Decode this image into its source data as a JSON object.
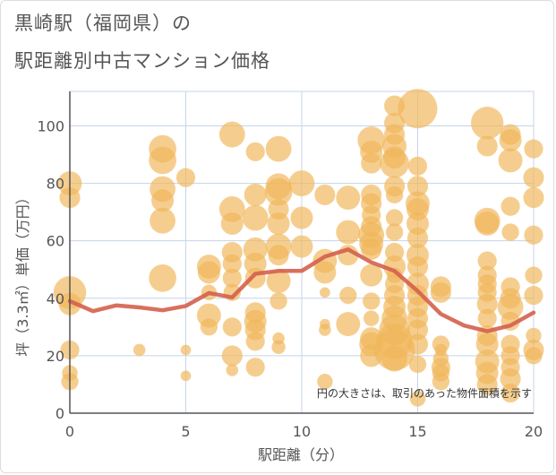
{
  "title_line1": "黒崎駅（福岡県）の",
  "title_line2": "駅距離別中古マンション価格",
  "colors": {
    "bubble": "#f0b75a",
    "line": "#d4604c",
    "grid": "#c5d5e8",
    "axis": "#555555"
  },
  "chart_data": {
    "type": "scatter",
    "title": "黒崎駅（福岡県）の駅距離別中古マンション価格",
    "xlabel": "駅距離（分）",
    "ylabel": "坪（3.3㎡）単価（万円）",
    "xlim": [
      0,
      20
    ],
    "ylim": [
      0,
      112
    ],
    "x_ticks": [
      "0",
      "5",
      "10",
      "15",
      "20"
    ],
    "y_ticks": [
      "0",
      "20",
      "40",
      "60",
      "80",
      "100"
    ],
    "x_tick_values": [
      0,
      5,
      10,
      15,
      20
    ],
    "y_tick_values": [
      0,
      20,
      40,
      60,
      80,
      100
    ],
    "grid": true,
    "annotation": "円の大きさは、取引のあった物件面積を示す",
    "bubbles": [
      {
        "x": 0,
        "y": 80,
        "s": 1.1
      },
      {
        "x": 0,
        "y": 75,
        "s": 0.9
      },
      {
        "x": 0,
        "y": 42,
        "s": 1.6
      },
      {
        "x": 0,
        "y": 38,
        "s": 1.0
      },
      {
        "x": 0,
        "y": 22,
        "s": 0.8
      },
      {
        "x": 0,
        "y": 14,
        "s": 0.6
      },
      {
        "x": 0,
        "y": 11,
        "s": 0.7
      },
      {
        "x": 3,
        "y": 22,
        "s": 0.4
      },
      {
        "x": 4,
        "y": 92,
        "s": 1.3
      },
      {
        "x": 4,
        "y": 88,
        "s": 1.3
      },
      {
        "x": 4,
        "y": 78,
        "s": 1.2
      },
      {
        "x": 4,
        "y": 74,
        "s": 1.0
      },
      {
        "x": 4,
        "y": 67,
        "s": 1.2
      },
      {
        "x": 4,
        "y": 47,
        "s": 1.3
      },
      {
        "x": 5,
        "y": 82,
        "s": 0.8
      },
      {
        "x": 5,
        "y": 22,
        "s": 0.3
      },
      {
        "x": 5,
        "y": 13,
        "s": 0.3
      },
      {
        "x": 6,
        "y": 51,
        "s": 1.1
      },
      {
        "x": 6,
        "y": 49,
        "s": 1.0
      },
      {
        "x": 6,
        "y": 42,
        "s": 0.6
      },
      {
        "x": 6,
        "y": 34,
        "s": 1.1
      },
      {
        "x": 6,
        "y": 30,
        "s": 0.7
      },
      {
        "x": 7,
        "y": 97,
        "s": 1.2
      },
      {
        "x": 7,
        "y": 71,
        "s": 1.2
      },
      {
        "x": 7,
        "y": 66,
        "s": 1.0
      },
      {
        "x": 7,
        "y": 56,
        "s": 0.9
      },
      {
        "x": 7,
        "y": 52,
        "s": 0.8
      },
      {
        "x": 7,
        "y": 47,
        "s": 0.8
      },
      {
        "x": 7,
        "y": 42,
        "s": 0.7
      },
      {
        "x": 7,
        "y": 30,
        "s": 0.8
      },
      {
        "x": 7,
        "y": 20,
        "s": 0.9
      },
      {
        "x": 7,
        "y": 15,
        "s": 0.4
      },
      {
        "x": 8,
        "y": 91,
        "s": 0.8
      },
      {
        "x": 8,
        "y": 76,
        "s": 1.0
      },
      {
        "x": 8,
        "y": 68,
        "s": 1.2
      },
      {
        "x": 8,
        "y": 57,
        "s": 1.1
      },
      {
        "x": 8,
        "y": 52,
        "s": 1.0
      },
      {
        "x": 8,
        "y": 47,
        "s": 0.9
      },
      {
        "x": 8,
        "y": 35,
        "s": 0.9
      },
      {
        "x": 8,
        "y": 32,
        "s": 1.0
      },
      {
        "x": 8,
        "y": 29,
        "s": 0.9
      },
      {
        "x": 8,
        "y": 25,
        "s": 0.8
      },
      {
        "x": 8,
        "y": 16,
        "s": 0.8
      },
      {
        "x": 9,
        "y": 92,
        "s": 1.2
      },
      {
        "x": 9,
        "y": 79,
        "s": 1.2
      },
      {
        "x": 9,
        "y": 77,
        "s": 1.3
      },
      {
        "x": 9,
        "y": 71,
        "s": 0.9
      },
      {
        "x": 9,
        "y": 66,
        "s": 1.0
      },
      {
        "x": 9,
        "y": 58,
        "s": 1.2
      },
      {
        "x": 9,
        "y": 55,
        "s": 0.9
      },
      {
        "x": 9,
        "y": 46,
        "s": 1.1
      },
      {
        "x": 9,
        "y": 39,
        "s": 0.7
      },
      {
        "x": 9,
        "y": 26,
        "s": 0.4
      },
      {
        "x": 9,
        "y": 23,
        "s": 0.5
      },
      {
        "x": 10,
        "y": 80,
        "s": 1.2
      },
      {
        "x": 10,
        "y": 68,
        "s": 1.0
      },
      {
        "x": 10,
        "y": 58,
        "s": 1.0
      },
      {
        "x": 11,
        "y": 76,
        "s": 0.9
      },
      {
        "x": 11,
        "y": 53,
        "s": 1.1
      },
      {
        "x": 11,
        "y": 49,
        "s": 1.0
      },
      {
        "x": 11,
        "y": 42,
        "s": 0.3
      },
      {
        "x": 11,
        "y": 31,
        "s": 0.3
      },
      {
        "x": 11,
        "y": 29,
        "s": 0.4
      },
      {
        "x": 11,
        "y": 11,
        "s": 0.6
      },
      {
        "x": 12,
        "y": 75,
        "s": 1.1
      },
      {
        "x": 12,
        "y": 63,
        "s": 1.1
      },
      {
        "x": 12,
        "y": 55,
        "s": 0.9
      },
      {
        "x": 12,
        "y": 41,
        "s": 0.7
      },
      {
        "x": 12,
        "y": 31,
        "s": 1.1
      },
      {
        "x": 13,
        "y": 95,
        "s": 1.3
      },
      {
        "x": 13,
        "y": 91,
        "s": 1.0
      },
      {
        "x": 13,
        "y": 87,
        "s": 0.9
      },
      {
        "x": 13,
        "y": 76,
        "s": 0.9
      },
      {
        "x": 13,
        "y": 73,
        "s": 0.9
      },
      {
        "x": 13,
        "y": 69,
        "s": 0.8
      },
      {
        "x": 13,
        "y": 65,
        "s": 0.9
      },
      {
        "x": 13,
        "y": 62,
        "s": 1.2
      },
      {
        "x": 13,
        "y": 59,
        "s": 1.1
      },
      {
        "x": 13,
        "y": 57,
        "s": 0.9
      },
      {
        "x": 13,
        "y": 48,
        "s": 1.0
      },
      {
        "x": 13,
        "y": 39,
        "s": 0.7
      },
      {
        "x": 13,
        "y": 33,
        "s": 0.6
      },
      {
        "x": 13,
        "y": 26,
        "s": 1.0
      },
      {
        "x": 13,
        "y": 24,
        "s": 1.1
      },
      {
        "x": 13,
        "y": 20,
        "s": 1.0
      },
      {
        "x": 14,
        "y": 107,
        "s": 0.9
      },
      {
        "x": 14,
        "y": 101,
        "s": 0.9
      },
      {
        "x": 14,
        "y": 97,
        "s": 0.9
      },
      {
        "x": 14,
        "y": 93,
        "s": 1.1
      },
      {
        "x": 14,
        "y": 89,
        "s": 1.0
      },
      {
        "x": 14,
        "y": 87,
        "s": 1.4
      },
      {
        "x": 14,
        "y": 79,
        "s": 0.9
      },
      {
        "x": 14,
        "y": 76,
        "s": 0.7
      },
      {
        "x": 14,
        "y": 68,
        "s": 0.7
      },
      {
        "x": 14,
        "y": 63,
        "s": 0.7
      },
      {
        "x": 14,
        "y": 56,
        "s": 0.8
      },
      {
        "x": 14,
        "y": 51,
        "s": 1.0
      },
      {
        "x": 14,
        "y": 48,
        "s": 0.6
      },
      {
        "x": 14,
        "y": 45,
        "s": 0.8
      },
      {
        "x": 14,
        "y": 41,
        "s": 0.9
      },
      {
        "x": 14,
        "y": 37,
        "s": 1.0
      },
      {
        "x": 14,
        "y": 33,
        "s": 1.2
      },
      {
        "x": 14,
        "y": 29,
        "s": 1.5
      },
      {
        "x": 14,
        "y": 25,
        "s": 1.8
      },
      {
        "x": 14,
        "y": 22,
        "s": 2.1
      },
      {
        "x": 14,
        "y": 19,
        "s": 1.2
      },
      {
        "x": 15,
        "y": 106,
        "s": 2.0
      },
      {
        "x": 15,
        "y": 86,
        "s": 0.8
      },
      {
        "x": 15,
        "y": 79,
        "s": 0.9
      },
      {
        "x": 15,
        "y": 73,
        "s": 1.1
      },
      {
        "x": 15,
        "y": 71,
        "s": 1.0
      },
      {
        "x": 15,
        "y": 66,
        "s": 1.0
      },
      {
        "x": 15,
        "y": 61,
        "s": 0.9
      },
      {
        "x": 15,
        "y": 55,
        "s": 1.0
      },
      {
        "x": 15,
        "y": 51,
        "s": 0.9
      },
      {
        "x": 15,
        "y": 45,
        "s": 1.0
      },
      {
        "x": 15,
        "y": 41,
        "s": 0.9
      },
      {
        "x": 15,
        "y": 37,
        "s": 0.9
      },
      {
        "x": 15,
        "y": 33,
        "s": 0.9
      },
      {
        "x": 15,
        "y": 29,
        "s": 0.9
      },
      {
        "x": 15,
        "y": 24,
        "s": 0.9
      },
      {
        "x": 15,
        "y": 17,
        "s": 0.7
      },
      {
        "x": 15,
        "y": 5,
        "s": 0.6
      },
      {
        "x": 16,
        "y": 44,
        "s": 0.9
      },
      {
        "x": 16,
        "y": 42,
        "s": 0.9
      },
      {
        "x": 16,
        "y": 24,
        "s": 0.7
      },
      {
        "x": 16,
        "y": 22,
        "s": 0.4
      },
      {
        "x": 16,
        "y": 19,
        "s": 0.6
      },
      {
        "x": 16,
        "y": 16,
        "s": 0.8
      },
      {
        "x": 16,
        "y": 14,
        "s": 0.7
      },
      {
        "x": 16,
        "y": 11,
        "s": 0.7
      },
      {
        "x": 18,
        "y": 101,
        "s": 1.6
      },
      {
        "x": 18,
        "y": 93,
        "s": 0.9
      },
      {
        "x": 18,
        "y": 67,
        "s": 1.2
      },
      {
        "x": 18,
        "y": 66,
        "s": 1.1
      },
      {
        "x": 18,
        "y": 53,
        "s": 0.8
      },
      {
        "x": 18,
        "y": 48,
        "s": 0.8
      },
      {
        "x": 18,
        "y": 45,
        "s": 0.8
      },
      {
        "x": 18,
        "y": 42,
        "s": 0.8
      },
      {
        "x": 18,
        "y": 38,
        "s": 0.9
      },
      {
        "x": 18,
        "y": 33,
        "s": 0.8
      },
      {
        "x": 18,
        "y": 27,
        "s": 0.9
      },
      {
        "x": 18,
        "y": 24,
        "s": 1.0
      },
      {
        "x": 18,
        "y": 18,
        "s": 1.1
      },
      {
        "x": 18,
        "y": 14,
        "s": 1.0
      },
      {
        "x": 18,
        "y": 10,
        "s": 0.9
      },
      {
        "x": 19,
        "y": 97,
        "s": 0.9
      },
      {
        "x": 19,
        "y": 95,
        "s": 1.0
      },
      {
        "x": 19,
        "y": 88,
        "s": 1.1
      },
      {
        "x": 19,
        "y": 72,
        "s": 0.8
      },
      {
        "x": 19,
        "y": 63,
        "s": 0.7
      },
      {
        "x": 19,
        "y": 44,
        "s": 0.8
      },
      {
        "x": 19,
        "y": 40,
        "s": 0.9
      },
      {
        "x": 19,
        "y": 37,
        "s": 1.2
      },
      {
        "x": 19,
        "y": 32,
        "s": 0.8
      },
      {
        "x": 19,
        "y": 24,
        "s": 0.8
      },
      {
        "x": 19,
        "y": 20,
        "s": 0.8
      },
      {
        "x": 19,
        "y": 16,
        "s": 0.8
      },
      {
        "x": 19,
        "y": 12,
        "s": 0.9
      },
      {
        "x": 19,
        "y": 7,
        "s": 0.8
      },
      {
        "x": 20,
        "y": 92,
        "s": 0.8
      },
      {
        "x": 20,
        "y": 82,
        "s": 0.9
      },
      {
        "x": 20,
        "y": 75,
        "s": 0.9
      },
      {
        "x": 20,
        "y": 62,
        "s": 0.8
      },
      {
        "x": 20,
        "y": 48,
        "s": 0.7
      },
      {
        "x": 20,
        "y": 41,
        "s": 0.8
      },
      {
        "x": 20,
        "y": 27,
        "s": 0.6
      },
      {
        "x": 20,
        "y": 22,
        "s": 0.9
      },
      {
        "x": 20,
        "y": 20,
        "s": 0.7
      }
    ],
    "series": [
      {
        "x": [
          0,
          1,
          2,
          3,
          4,
          5,
          6,
          7,
          8,
          9,
          10,
          11,
          12,
          13,
          14,
          15,
          16,
          17,
          18,
          19,
          20
        ],
        "values": [
          39,
          35.5,
          37.5,
          36.8,
          35.8,
          37.3,
          41.8,
          40.3,
          48.5,
          49.5,
          49.5,
          54.5,
          57,
          52.5,
          49.5,
          42.5,
          34.5,
          30.5,
          28.5,
          30.5,
          35
        ]
      }
    ]
  }
}
